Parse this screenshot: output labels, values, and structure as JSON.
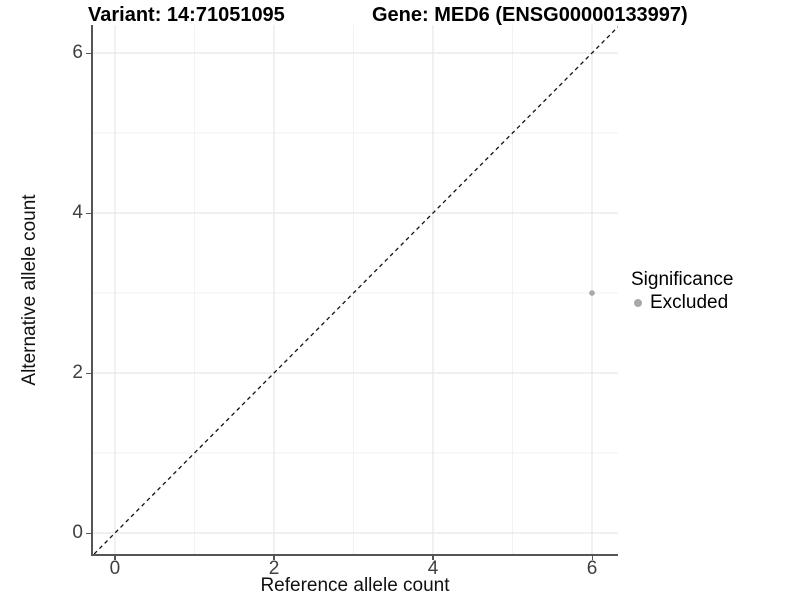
{
  "titles": {
    "left": "Variant: 14:71051095",
    "right": "Gene: MED6 (ENSG00000133997)"
  },
  "chart_data": {
    "type": "scatter",
    "title_left": "Variant: 14:71051095",
    "title_right": "Gene: MED6 (ENSG00000133997)",
    "xlabel": "Reference allele count",
    "ylabel": "Alternative allele count",
    "xlim": [
      -0.289,
      6.327
    ],
    "ylim": [
      -0.2625,
      6.35
    ],
    "xticks": [
      0,
      2,
      4,
      6
    ],
    "yticks": [
      0,
      2,
      4,
      6
    ],
    "xticks_minor": [
      1,
      3,
      5
    ],
    "yticks_minor": [
      1,
      3,
      5
    ],
    "grid": true,
    "series": [
      {
        "name": "Excluded",
        "marker": "circle",
        "color": "#a8a8a8",
        "points": [
          {
            "x": 6,
            "y": 3
          }
        ]
      }
    ],
    "reference_line": {
      "kind": "identity",
      "slope": 1,
      "intercept": 0,
      "linestyle": "dashed",
      "color": "#111111"
    },
    "legend": {
      "title": "Significance",
      "position": "right",
      "entries": [
        {
          "label": "Excluded",
          "color": "#a8a8a8"
        }
      ]
    },
    "colors": {
      "grid_major": "#e7e7e7",
      "grid_minor": "#f2f2f2",
      "axis_line": "#555555",
      "tick_label": "#404040",
      "background": "#ffffff"
    }
  }
}
